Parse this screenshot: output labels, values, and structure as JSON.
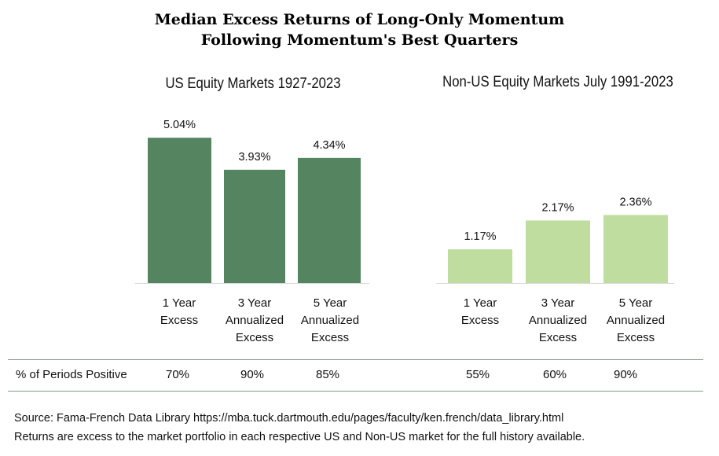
{
  "title_line1": "Median Excess Returns of Long-Only Momentum",
  "title_line2": "Following Momentum's Best Quarters",
  "chart_data": [
    {
      "type": "bar",
      "title": "US Equity Markets 1927-2023",
      "categories": [
        [
          "1 Year",
          "Excess"
        ],
        [
          "3 Year",
          "Annualized",
          "Excess"
        ],
        [
          "5 Year",
          "Annualized",
          "Excess"
        ]
      ],
      "values": [
        5.04,
        3.93,
        4.34
      ],
      "value_labels": [
        "5.04%",
        "3.93%",
        "4.34%"
      ],
      "color": "#558461",
      "ylim": [
        0,
        6
      ]
    },
    {
      "type": "bar",
      "title": "Non-US Equity Markets July 1991-2023",
      "categories": [
        [
          "1 Year",
          "Excess"
        ],
        [
          "3 Year",
          "Annualized",
          "Excess"
        ],
        [
          "5 Year",
          "Annualized",
          "Excess"
        ]
      ],
      "values": [
        1.17,
        2.17,
        2.36
      ],
      "value_labels": [
        "1.17%",
        "2.17%",
        "2.36%"
      ],
      "color": "#bfdd9f",
      "ylim": [
        0,
        6
      ]
    }
  ],
  "periods_positive": {
    "label": "% of Periods Positive",
    "us": [
      "70%",
      "90%",
      "85%"
    ],
    "non_us": [
      "55%",
      "60%",
      "90%"
    ]
  },
  "source_line1": "Source: Fama-French Data Library https://mba.tuck.dartmouth.edu/pages/faculty/ken.french/data_library.html",
  "source_line2": "Returns are excess to the market portfolio in each respective US and Non-US market for the full history available."
}
